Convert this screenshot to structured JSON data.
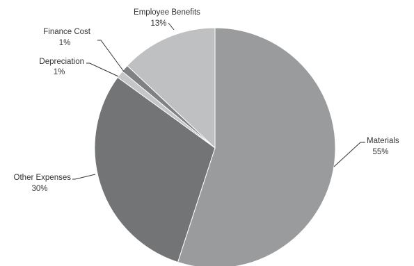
{
  "chart_data": {
    "type": "pie",
    "title": "",
    "slices": [
      {
        "label": "Materials",
        "value": 55,
        "value_label": "55%",
        "color": "#9a9b9d"
      },
      {
        "label": "Other Expenses",
        "value": 30,
        "value_label": "30%",
        "color": "#737476"
      },
      {
        "label": "Depreciation",
        "value": 1,
        "value_label": "1%",
        "color": "#c5c6c8"
      },
      {
        "label": "Finance Cost",
        "value": 1,
        "value_label": "1%",
        "color": "#808183"
      },
      {
        "label": "Employee Benefits",
        "value": 13,
        "value_label": "13%",
        "color": "#bfc0c2"
      }
    ],
    "start_angle_deg": 0,
    "direction": "clockwise",
    "legend": "none",
    "slice_border_color": "#ffffff"
  }
}
